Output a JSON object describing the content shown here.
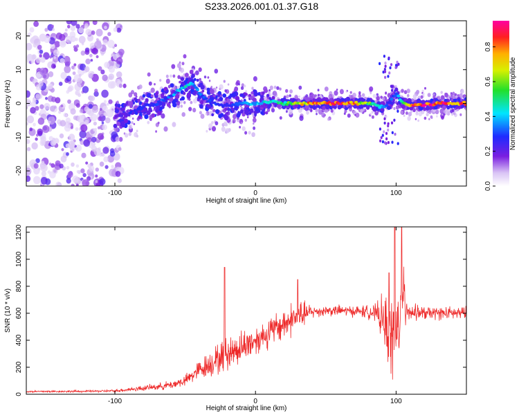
{
  "title": "S233.2026.001.01.37.G18",
  "colors": {
    "snr_line": "#ee2a2a",
    "axis": "#000000",
    "background": "#ffffff"
  },
  "chart_data": [
    {
      "type": "heatmap",
      "xlabel": "Height of straight line (km)",
      "ylabel": "Frequency (Hz)",
      "xlim": [
        -163,
        150
      ],
      "ylim": [
        -24.5,
        24.5
      ],
      "xticks": [
        -100,
        0,
        100
      ],
      "xtick_labels": [
        "-100",
        "0",
        "100"
      ],
      "yticks": [
        -20,
        -10,
        0,
        10,
        20
      ],
      "ytick_labels": [
        "-20",
        "-10",
        "0",
        "10",
        "20"
      ],
      "colorbar": {
        "label": "Normalized spectral amplitude",
        "range": [
          0.0,
          0.95
        ],
        "ticks": [
          0.0,
          0.2,
          0.4,
          0.6,
          0.8
        ],
        "tick_labels": [
          "0.0",
          "0.2",
          "0.4",
          "0.6",
          "0.8"
        ],
        "colormap": "rainbow (white-violet-blue-cyan-green-yellow-orange-red-magenta)"
      },
      "ridge": {
        "description": "dominant spectral energy along frequency ridge; amplitude normalized 0-1",
        "x": [
          -100,
          -90,
          -80,
          -70,
          -60,
          -55,
          -50,
          -45,
          -40,
          -35,
          -30,
          -20,
          -10,
          0,
          10,
          20,
          30,
          40,
          50,
          60,
          70,
          80,
          90,
          95,
          100,
          105,
          110,
          120,
          130,
          140,
          150
        ],
        "freq": [
          -4,
          -3,
          -1,
          0,
          2,
          4,
          5,
          6,
          3,
          1,
          0,
          -1,
          0,
          0,
          0.5,
          0,
          0,
          0,
          0,
          0,
          0,
          0,
          -1,
          0,
          3,
          0,
          -0.5,
          -0.5,
          0,
          0,
          0
        ],
        "amplitude": [
          0.2,
          0.25,
          0.3,
          0.3,
          0.35,
          0.4,
          0.45,
          0.4,
          0.35,
          0.3,
          0.3,
          0.3,
          0.35,
          0.4,
          0.45,
          0.5,
          0.7,
          0.8,
          0.85,
          0.85,
          0.8,
          0.6,
          0.4,
          0.3,
          0.35,
          0.6,
          0.85,
          0.9,
          0.9,
          0.85,
          0.8
        ]
      }
    },
    {
      "type": "line",
      "xlabel": "Height of straight line (km)",
      "ylabel": "SNR (10 * v/v)",
      "xlim": [
        -163,
        150
      ],
      "ylim": [
        0,
        1240
      ],
      "xticks": [
        -100,
        0,
        100
      ],
      "xtick_labels": [
        "-100",
        "0",
        "100"
      ],
      "yticks": [
        0,
        200,
        400,
        600,
        800,
        1000,
        1200
      ],
      "ytick_labels": [
        "0",
        "200",
        "400",
        "600",
        "800",
        "1000",
        "1200"
      ],
      "envelope": {
        "description": "approximate mean SNR and noise spread per height",
        "x": [
          -163,
          -120,
          -100,
          -90,
          -80,
          -70,
          -60,
          -50,
          -40,
          -30,
          -20,
          -10,
          0,
          10,
          20,
          30,
          40,
          50,
          60,
          70,
          80,
          85,
          90,
          95,
          100,
          105,
          110,
          120,
          130,
          140,
          150
        ],
        "mean": [
          20,
          22,
          25,
          35,
          45,
          55,
          70,
          100,
          180,
          240,
          300,
          350,
          400,
          460,
          520,
          580,
          610,
          620,
          620,
          615,
          610,
          600,
          560,
          450,
          400,
          700,
          610,
          600,
          600,
          600,
          600
        ],
        "spread": [
          10,
          10,
          12,
          20,
          25,
          30,
          40,
          50,
          90,
          130,
          160,
          150,
          140,
          140,
          150,
          160,
          60,
          50,
          50,
          50,
          60,
          80,
          200,
          350,
          450,
          300,
          80,
          60,
          60,
          60,
          60
        ]
      },
      "peaks": [
        {
          "x": -22,
          "y": 940
        },
        {
          "x": 30,
          "y": 850
        },
        {
          "x": 95,
          "y": 900
        },
        {
          "x": 99,
          "y": 1240
        },
        {
          "x": 104,
          "y": 1240
        }
      ]
    }
  ]
}
